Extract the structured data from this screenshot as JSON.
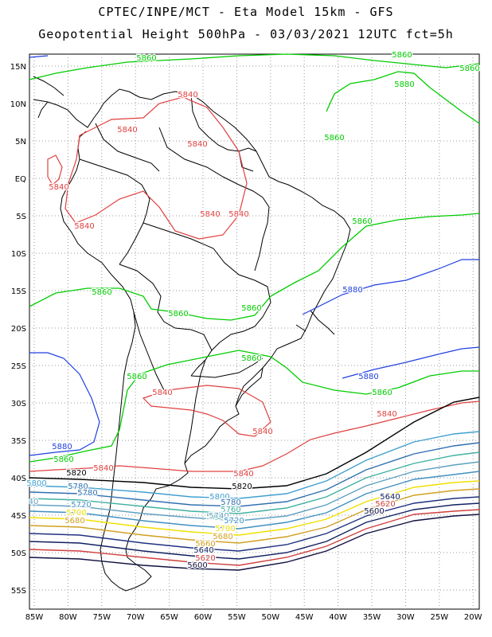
{
  "title_line1": "CPTEC/INPE/MCT -  Eta Model 15km - GFS",
  "title_line2": "Geopotential Height 500hPa - 03/03/2021 12UTC fct=5h",
  "x_ticks": [
    "85W",
    "80W",
    "75W",
    "70W",
    "65W",
    "60W",
    "55W",
    "50W",
    "45W",
    "40W",
    "35W",
    "30W",
    "25W",
    "20W"
  ],
  "y_ticks": [
    "15N",
    "10N",
    "5N",
    "EQ",
    "5S",
    "10S",
    "15S",
    "20S",
    "25S",
    "30S",
    "35S",
    "40S",
    "45S",
    "50S",
    "55S"
  ],
  "colors": {
    "5860": "#00cc00",
    "5880": "#2040e0",
    "5840": "#e04040",
    "5820": "#000000",
    "5800": "#40a0d0",
    "5780": "#3070b0",
    "5760": "#40b0a0",
    "5740": "#60a0c0",
    "5720": "#4090c0",
    "5700": "#f0e000",
    "5680": "#d0a020",
    "5660": "#203080",
    "5640": "#102060",
    "5620": "#d04040",
    "5600": "#101040"
  },
  "contour_labels": [
    {
      "text": "5860",
      "color": "5860"
    },
    {
      "text": "5860",
      "color": "5860"
    },
    {
      "text": "5860",
      "color": "5860"
    },
    {
      "text": "5880",
      "color": "5860"
    },
    {
      "text": "5860",
      "color": "5860"
    },
    {
      "text": "5860",
      "color": "5860"
    },
    {
      "text": "5860",
      "color": "5860"
    },
    {
      "text": "5860",
      "color": "5860"
    },
    {
      "text": "5860",
      "color": "5860"
    },
    {
      "text": "5860",
      "color": "5860"
    },
    {
      "text": "5860",
      "color": "5860"
    },
    {
      "text": "5860",
      "color": "5860"
    },
    {
      "text": "5860",
      "color": "5860"
    },
    {
      "text": "5840",
      "color": "5840"
    },
    {
      "text": "5840",
      "color": "5840"
    },
    {
      "text": "5840",
      "color": "5840"
    },
    {
      "text": "5840",
      "color": "5840"
    },
    {
      "text": "5840",
      "color": "5840"
    },
    {
      "text": "5840",
      "color": "5840"
    },
    {
      "text": "5840",
      "color": "5840"
    },
    {
      "text": "5840",
      "color": "5840"
    },
    {
      "text": "5840",
      "color": "5840"
    },
    {
      "text": "5840",
      "color": "5840"
    },
    {
      "text": "5840",
      "color": "5840"
    },
    {
      "text": "5840",
      "color": "5840"
    },
    {
      "text": "5880",
      "color": "5880"
    },
    {
      "text": "5880",
      "color": "5880"
    },
    {
      "text": "5880",
      "color": "5880"
    },
    {
      "text": "5820",
      "color": "5820"
    },
    {
      "text": "5820",
      "color": "5820"
    },
    {
      "text": "5800",
      "color": "5800"
    },
    {
      "text": "5800",
      "color": "5800"
    },
    {
      "text": "5780",
      "color": "5780"
    },
    {
      "text": "5780",
      "color": "5780"
    },
    {
      "text": "5780",
      "color": "5780"
    },
    {
      "text": "5760",
      "color": "5760"
    },
    {
      "text": "5760",
      "color": "5760"
    },
    {
      "text": "40",
      "color": "5740"
    },
    {
      "text": "5740",
      "color": "5740"
    },
    {
      "text": "5720",
      "color": "5720"
    },
    {
      "text": "5720",
      "color": "5720"
    },
    {
      "text": "5700",
      "color": "5700"
    },
    {
      "text": "5700",
      "color": "5700"
    },
    {
      "text": "5680",
      "color": "5680"
    },
    {
      "text": "5680",
      "color": "5680"
    },
    {
      "text": "5660",
      "color": "5680"
    },
    {
      "text": "5640",
      "color": "5640"
    },
    {
      "text": "5640",
      "color": "5640"
    },
    {
      "text": "5620",
      "color": "5620"
    },
    {
      "text": "5620",
      "color": "5620"
    },
    {
      "text": "5600",
      "color": "5600"
    },
    {
      "text": "5600",
      "color": "5600"
    }
  ]
}
